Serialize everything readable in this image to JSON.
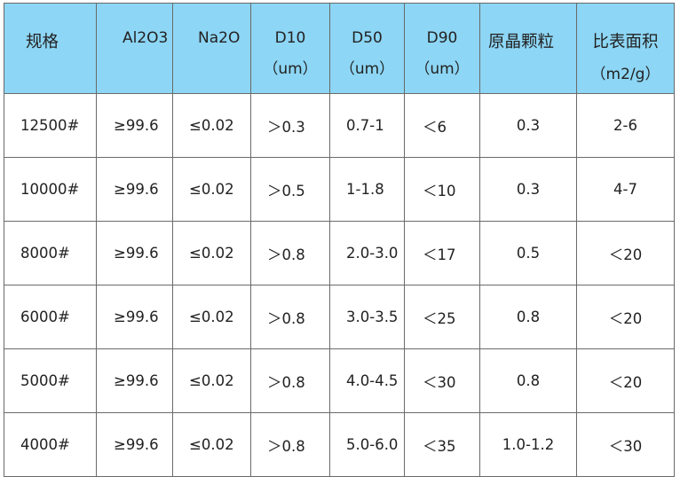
{
  "header": [
    {
      "line1": "规格",
      "line2": ""
    },
    {
      "line1": "Al2O3",
      "line2": ""
    },
    {
      "line1": "Na2O",
      "line2": ""
    },
    {
      "line1": "D10",
      "line2": "（um）"
    },
    {
      "line1": "D50",
      "line2": "（um）"
    },
    {
      "line1": "D90",
      "line2": "（um）"
    },
    {
      "line1": "原晶颗粒",
      "line2": ""
    },
    {
      "line1": "比表面积",
      "line2": "（m2/g）"
    }
  ],
  "rows": [
    [
      "12500#",
      "≥99.6",
      "≤0.02",
      "＞0.3",
      "0.7-1",
      "＜6",
      "0.3",
      "2-6"
    ],
    [
      "10000#",
      "≥99.6",
      "≤0.02",
      "＞0.5",
      "1-1.8",
      "＜10",
      "0.3",
      "4-7"
    ],
    [
      "8000#",
      "≥99.6",
      "≤0.02",
      "＞0.8",
      "2.0-3.0",
      "＜17",
      "0.5",
      "＜20"
    ],
    [
      "6000#",
      "≥99.6",
      "≤0.02",
      "＞0.8",
      "3.0-3.5",
      "＜25",
      "0.8",
      "＜20"
    ],
    [
      "5000#",
      "≥99.6",
      "≤0.02",
      "＞0.8",
      "4.0-4.5",
      "＜30",
      "0.8",
      "＜20"
    ],
    [
      "4000#",
      "≥99.6",
      "≤0.02",
      "＞0.8",
      "5.0-6.0",
      "＜35",
      "1.0-1.2",
      "＜30"
    ]
  ],
  "colors": {
    "header_bg": "#8dd6f5",
    "border": "#6a6a6a"
  }
}
